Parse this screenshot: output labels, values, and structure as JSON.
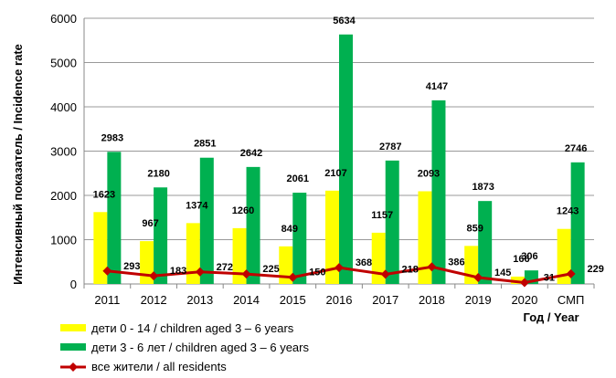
{
  "chart_data": {
    "type": "bar",
    "title": "",
    "xlabel": "Год / Year",
    "ylabel": "Интенсивный показатель / Incidence rate",
    "ylim": [
      0,
      6000
    ],
    "yticks": [
      "0",
      "1000",
      "2000",
      "3000",
      "4000",
      "5000",
      "6000"
    ],
    "grid": true,
    "legend_position": "bottom-left",
    "categories": [
      "2011",
      "2012",
      "2013",
      "2014",
      "2015",
      "2016",
      "2017",
      "2018",
      "2019",
      "2020",
      "СМП"
    ],
    "series": [
      {
        "name": "дети 0 - 14 / children aged 3 – 6 years",
        "kind": "bar",
        "color": "#FFFF00",
        "values": [
          1623,
          967,
          1374,
          1260,
          849,
          2107,
          1157,
          2093,
          859,
          166,
          1243
        ],
        "labels": [
          "1623",
          "967",
          "1374",
          "1260",
          "849",
          "2107",
          "1157",
          "2093",
          "859",
          "166",
          "1243"
        ]
      },
      {
        "name": "дети 3 - 6 лет / children aged 3 – 6 years",
        "kind": "bar",
        "color": "#00B050",
        "values": [
          2983,
          2180,
          2851,
          2642,
          2061,
          5634,
          2787,
          4147,
          1873,
          306,
          2746
        ],
        "labels": [
          "2983",
          "2180",
          "2851",
          "2642",
          "2061",
          "5634",
          "2787",
          "4147",
          "1873",
          "306",
          "2746"
        ]
      },
      {
        "name": "все жители / all residents",
        "kind": "line",
        "color": "#C00000",
        "values": [
          293,
          183,
          272,
          225,
          150,
          368,
          218,
          386,
          145,
          31,
          229
        ],
        "labels": [
          "293",
          "183",
          "272",
          "225",
          "150",
          "368",
          "218",
          "386",
          "145",
          "31",
          "229"
        ]
      }
    ]
  }
}
